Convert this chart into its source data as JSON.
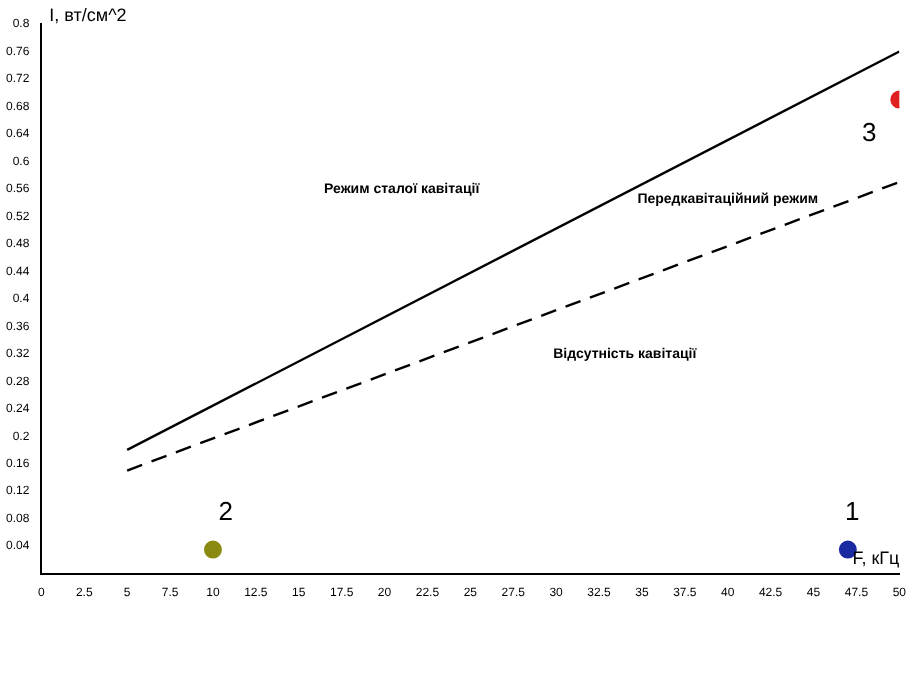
{
  "chart_data": {
    "type": "line",
    "xlabel": "F, кГц",
    "ylabel": "I, вт/см^2",
    "xlim": [
      0,
      50
    ],
    "xticks": [
      0,
      2.5,
      5,
      7.5,
      10,
      12.5,
      15,
      17.5,
      20,
      22.5,
      25,
      27.5,
      30,
      32.5,
      35,
      37.5,
      40,
      42.5,
      45,
      47.5,
      50
    ],
    "ylim": [
      0,
      0.8
    ],
    "yticks": [
      0.04,
      0.08,
      0.12,
      0.16,
      0.2,
      0.24,
      0.28,
      0.32,
      0.36,
      0.4,
      0.44,
      0.48,
      0.52,
      0.56,
      0.6,
      0.64,
      0.68,
      0.72,
      0.76,
      0.8
    ],
    "series": [
      {
        "type": "line",
        "x": [
          5,
          50
        ],
        "values": [
          0.18,
          0.76
        ],
        "color": "#000000",
        "line_style": "solid",
        "marker": "none"
      },
      {
        "type": "line",
        "x": [
          5,
          50
        ],
        "values": [
          0.15,
          0.57
        ],
        "color": "#000000",
        "line_style": "dashed",
        "marker": "none"
      },
      {
        "type": "scatter",
        "x": [
          47
        ],
        "values": [
          0.035
        ],
        "color": "#1a2aa0",
        "marker": "circle"
      },
      {
        "type": "scatter",
        "x": [
          10
        ],
        "values": [
          0.035
        ],
        "color": "#8a8a10",
        "marker": "circle"
      },
      {
        "type": "scatter",
        "x": [
          50
        ],
        "values": [
          0.69
        ],
        "color": "#e02020",
        "marker": "circle"
      }
    ],
    "annotations": [
      "Режим сталої кавітації",
      "Передкавітаційний режим",
      "Відсутність кавітації",
      "1",
      "2",
      "3"
    ]
  }
}
